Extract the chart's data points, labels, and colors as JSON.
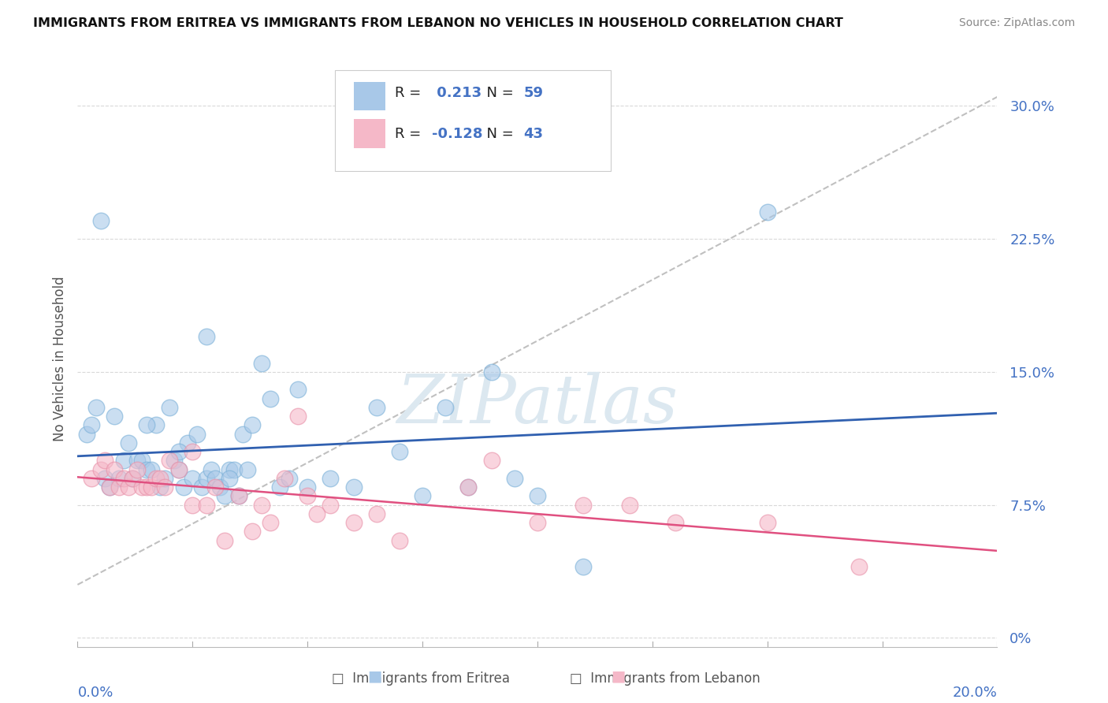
{
  "title": "IMMIGRANTS FROM ERITREA VS IMMIGRANTS FROM LEBANON NO VEHICLES IN HOUSEHOLD CORRELATION CHART",
  "source": "Source: ZipAtlas.com",
  "ylabel": "No Vehicles in Household",
  "legend_eritrea": "Immigrants from Eritrea",
  "legend_lebanon": "Immigrants from Lebanon",
  "r_eritrea": 0.213,
  "n_eritrea": 59,
  "r_lebanon": -0.128,
  "n_lebanon": 43,
  "color_eritrea": "#a8c8e8",
  "color_eritrea_edge": "#7ab0d8",
  "color_lebanon": "#f5b8c8",
  "color_lebanon_edge": "#e890a8",
  "color_trendline_eritrea": "#3060b0",
  "color_trendline_lebanon": "#e05080",
  "color_diagonal": "#c0c0c0",
  "color_grid": "#d0d0d0",
  "watermark_color": "#dce8f0",
  "background_color": "#ffffff",
  "xlim": [
    0.0,
    0.2
  ],
  "ylim": [
    -0.005,
    0.32
  ],
  "ytick_vals": [
    0.0,
    0.075,
    0.15,
    0.225,
    0.3
  ],
  "ytick_labels": [
    "0%",
    "7.5%",
    "15.0%",
    "22.5%",
    "30.0%"
  ],
  "scatter_eritrea_x": [
    0.002,
    0.003,
    0.004,
    0.005,
    0.006,
    0.007,
    0.008,
    0.009,
    0.01,
    0.011,
    0.012,
    0.013,
    0.014,
    0.015,
    0.016,
    0.017,
    0.018,
    0.019,
    0.02,
    0.021,
    0.022,
    0.023,
    0.024,
    0.025,
    0.026,
    0.027,
    0.028,
    0.029,
    0.03,
    0.031,
    0.032,
    0.033,
    0.034,
    0.035,
    0.036,
    0.037,
    0.038,
    0.04,
    0.042,
    0.044,
    0.046,
    0.048,
    0.05,
    0.055,
    0.06,
    0.065,
    0.07,
    0.075,
    0.08,
    0.085,
    0.09,
    0.095,
    0.1,
    0.11,
    0.015,
    0.022,
    0.028,
    0.033,
    0.15
  ],
  "scatter_eritrea_y": [
    0.115,
    0.12,
    0.13,
    0.235,
    0.09,
    0.085,
    0.125,
    0.09,
    0.1,
    0.11,
    0.09,
    0.1,
    0.1,
    0.095,
    0.095,
    0.12,
    0.085,
    0.09,
    0.13,
    0.1,
    0.095,
    0.085,
    0.11,
    0.09,
    0.115,
    0.085,
    0.09,
    0.095,
    0.09,
    0.085,
    0.08,
    0.095,
    0.095,
    0.08,
    0.115,
    0.095,
    0.12,
    0.155,
    0.135,
    0.085,
    0.09,
    0.14,
    0.085,
    0.09,
    0.085,
    0.13,
    0.105,
    0.08,
    0.13,
    0.085,
    0.15,
    0.09,
    0.08,
    0.04,
    0.12,
    0.105,
    0.17,
    0.09,
    0.24
  ],
  "scatter_lebanon_x": [
    0.003,
    0.005,
    0.006,
    0.007,
    0.008,
    0.009,
    0.01,
    0.011,
    0.012,
    0.013,
    0.014,
    0.015,
    0.016,
    0.017,
    0.018,
    0.019,
    0.02,
    0.022,
    0.025,
    0.028,
    0.03,
    0.032,
    0.035,
    0.038,
    0.04,
    0.042,
    0.045,
    0.05,
    0.055,
    0.06,
    0.065,
    0.07,
    0.085,
    0.09,
    0.1,
    0.11,
    0.12,
    0.13,
    0.15,
    0.17,
    0.025,
    0.048,
    0.052
  ],
  "scatter_lebanon_y": [
    0.09,
    0.095,
    0.1,
    0.085,
    0.095,
    0.085,
    0.09,
    0.085,
    0.09,
    0.095,
    0.085,
    0.085,
    0.085,
    0.09,
    0.09,
    0.085,
    0.1,
    0.095,
    0.075,
    0.075,
    0.085,
    0.055,
    0.08,
    0.06,
    0.075,
    0.065,
    0.09,
    0.08,
    0.075,
    0.065,
    0.07,
    0.055,
    0.085,
    0.1,
    0.065,
    0.075,
    0.075,
    0.065,
    0.065,
    0.04,
    0.105,
    0.125,
    0.07
  ]
}
